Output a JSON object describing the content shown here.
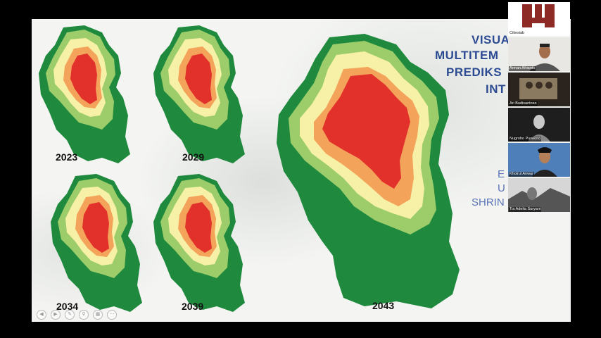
{
  "slide": {
    "title_lines": [
      "VISUA",
      "MULTITEM",
      "PREDIKS",
      "INT"
    ],
    "subtitle_lines": [
      "E",
      "U",
      "SHRIN"
    ],
    "maps": [
      {
        "year": "2023"
      },
      {
        "year": "2029"
      },
      {
        "year": "2034"
      },
      {
        "year": "2039"
      },
      {
        "year": "2043"
      }
    ],
    "toolbar_icons": [
      "prev-icon",
      "next-icon",
      "pen-icon",
      "zoom-icon",
      "slides-icon",
      "more-icon"
    ]
  },
  "participants": [
    {
      "name": "Citiesiab",
      "kind": "logo"
    },
    {
      "name": "Arman Afrianto",
      "kind": "video"
    },
    {
      "name": "Ari Budisantoso",
      "kind": "video"
    },
    {
      "name": "Nugroho Purwono",
      "kind": "video"
    },
    {
      "name": "Khoirul Anwar",
      "kind": "video"
    },
    {
      "name": "Tia Adelia Suryani",
      "kind": "video"
    }
  ],
  "colors": {
    "green_dark": "#1f8a3e",
    "green_light": "#9ccd6a",
    "yellow": "#f7f1a8",
    "orange": "#f3a45a",
    "red": "#e2312b",
    "title_blue": "#2d4b92"
  }
}
